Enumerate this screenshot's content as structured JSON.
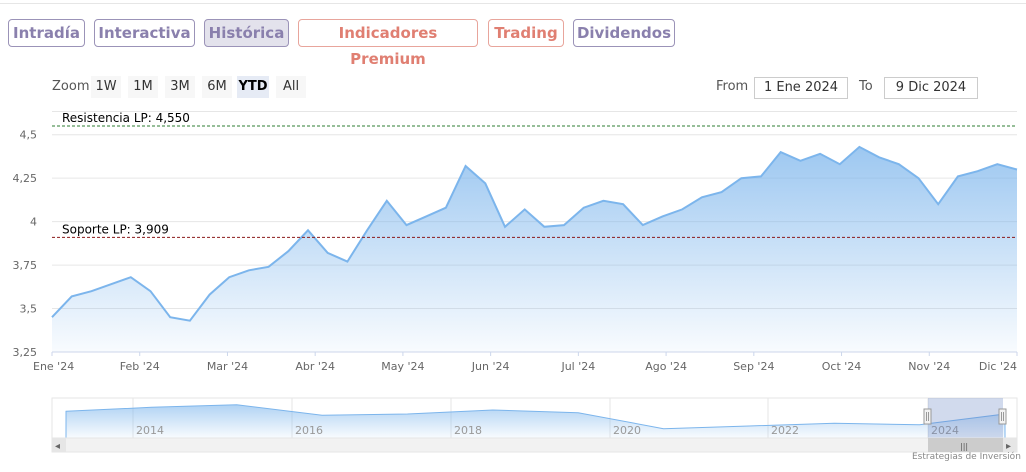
{
  "tabs": [
    {
      "label": "Intradía",
      "style": "purple",
      "active": false
    },
    {
      "label": "Interactiva",
      "style": "purple",
      "active": false
    },
    {
      "label": "Histórica",
      "style": "purple",
      "active": true
    },
    {
      "label": "Indicadores Premium",
      "style": "red",
      "active": false
    },
    {
      "label": "Trading",
      "style": "red",
      "active": false
    },
    {
      "label": "Dividendos",
      "style": "purple",
      "active": false
    }
  ],
  "zoom": {
    "label": "Zoom",
    "buttons": [
      "1W",
      "1M",
      "3M",
      "6M",
      "YTD",
      "All"
    ],
    "selected": "YTD"
  },
  "range": {
    "from_label": "From",
    "from_value": "1 Ene 2024",
    "to_label": "To",
    "to_value": "9 Dic 2024"
  },
  "colors": {
    "series": "#7cb5ec",
    "resistance": "#2e7d32",
    "support": "#8b1a1a",
    "tab_purple": "#8a80ad",
    "tab_red": "#e07f72"
  },
  "chart_data": [
    {
      "type": "area",
      "x": [
        "1 Ene",
        "7 Ene",
        "14 Ene",
        "21 Ene",
        "28 Ene",
        "4 Feb",
        "11 Feb",
        "18 Feb",
        "25 Feb",
        "3 Mar",
        "10 Mar",
        "17 Mar",
        "24 Mar",
        "31 Mar",
        "7 Abr",
        "14 Abr",
        "21 Abr",
        "28 Abr",
        "5 May",
        "12 May",
        "19 May",
        "26 May",
        "2 Jun",
        "9 Jun",
        "16 Jun",
        "23 Jun",
        "30 Jun",
        "7 Jul",
        "14 Jul",
        "21 Jul",
        "28 Jul",
        "4 Ago",
        "11 Ago",
        "18 Ago",
        "25 Ago",
        "1 Sep",
        "8 Sep",
        "15 Sep",
        "22 Sep",
        "29 Sep",
        "6 Oct",
        "13 Oct",
        "20 Oct",
        "27 Oct",
        "3 Nov",
        "10 Nov",
        "17 Nov",
        "24 Nov",
        "1 Dic",
        "9 Dic"
      ],
      "values": [
        3.45,
        3.57,
        3.6,
        3.64,
        3.68,
        3.6,
        3.45,
        3.43,
        3.58,
        3.68,
        3.72,
        3.74,
        3.83,
        3.95,
        3.82,
        3.77,
        3.95,
        4.12,
        3.98,
        4.03,
        4.08,
        4.32,
        4.22,
        3.97,
        4.07,
        3.97,
        3.98,
        4.08,
        4.12,
        4.1,
        3.98,
        4.03,
        4.07,
        4.14,
        4.17,
        4.25,
        4.26,
        4.4,
        4.35,
        4.39,
        4.33,
        4.43,
        4.37,
        4.33,
        4.25,
        4.1,
        4.26,
        4.29,
        4.33,
        4.3
      ],
      "x_ticks": [
        "Ene '24",
        "Feb '24",
        "Mar '24",
        "Abr '24",
        "May '24",
        "Jun '24",
        "Jul '24",
        "Ago '24",
        "Sep '24",
        "Oct '24",
        "Nov '24",
        "Dic '24"
      ],
      "y_ticks": [
        "3,25",
        "3,5",
        "3,75",
        "4",
        "4,25",
        "4,5"
      ],
      "ylim": [
        3.25,
        4.55
      ],
      "grid": true,
      "reference_lines": [
        {
          "label": "Resistencia LP: 4,550",
          "value": 4.55
        },
        {
          "label": "Soporte LP: 3,909",
          "value": 3.909
        }
      ]
    },
    {
      "type": "area",
      "x": [
        2013,
        2014,
        2015,
        2016,
        2017,
        2018,
        2019,
        2020,
        2021,
        2022,
        2023,
        2024
      ],
      "values": [
        4.5,
        4.8,
        5.0,
        4.2,
        4.3,
        4.6,
        4.4,
        3.2,
        3.4,
        3.6,
        3.5,
        4.3
      ],
      "x_ticks": [
        "2014",
        "2016",
        "2018",
        "2020",
        "2022",
        "2024"
      ]
    }
  ],
  "navigator": {
    "handle_icon": "grip-icon",
    "left_arrow": "◂",
    "right_arrow": "▸",
    "grip": "|||"
  },
  "credit": "Estrategias de Inversión"
}
